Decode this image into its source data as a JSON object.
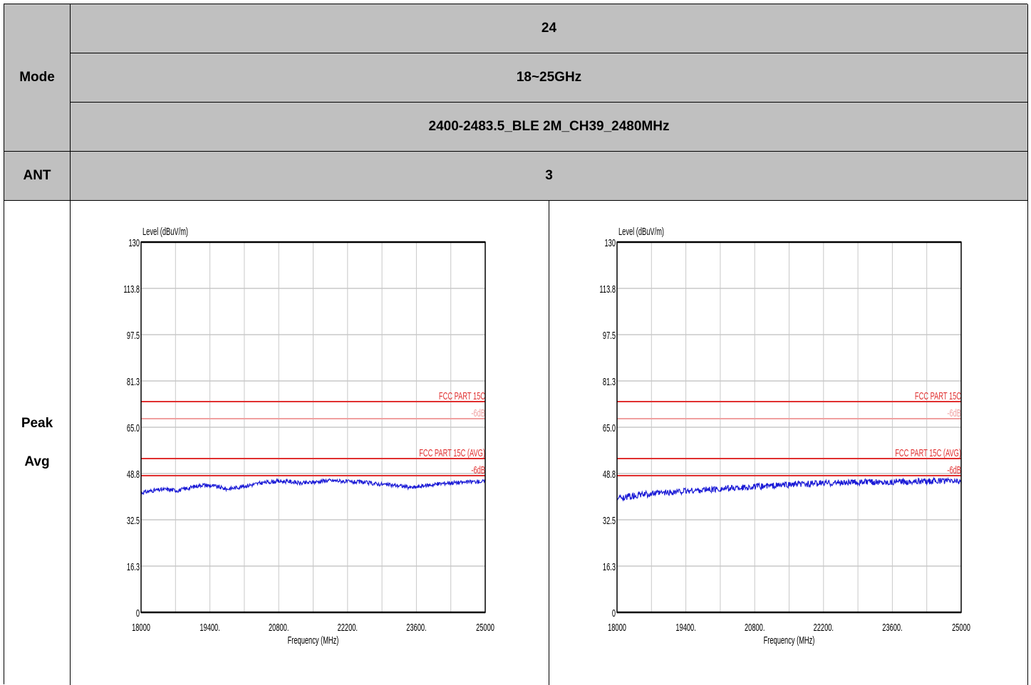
{
  "table": {
    "mode_label": "Mode",
    "mode_values": [
      "24",
      "18~25GHz",
      "2400-2483.5_BLE 2M_CH39_2480MHz"
    ],
    "ant_label": "ANT",
    "ant_value": "3",
    "result_labels": [
      "Peak",
      "Avg"
    ]
  },
  "chart_data": [
    {
      "type": "line",
      "title": "",
      "xlabel": "Frequency (MHz)",
      "ylabel": "Level (dBuV/m)",
      "xlim": [
        18000,
        25000
      ],
      "ylim": [
        0,
        130
      ],
      "x_ticks": [
        "18000",
        "19400.",
        "20800.",
        "22200.",
        "23600.",
        "25000"
      ],
      "y_ticks": [
        "0",
        "16.3",
        "32.5",
        "48.8",
        "65.0",
        "81.3",
        "97.5",
        "113.8",
        "130"
      ],
      "grid": true,
      "limit_lines": [
        {
          "label": "FCC PART 15C",
          "value": 74,
          "color": "#e03030"
        },
        {
          "label": "-6dB",
          "value": 68,
          "color": "#f0a0a0"
        },
        {
          "label": "FCC PART 15C (AVG)",
          "value": 54,
          "color": "#e03030"
        },
        {
          "label": "-6dB",
          "value": 48,
          "color": "#e03030"
        }
      ],
      "series": [
        {
          "color": "#1a1ad6",
          "x": [
            18000,
            18250,
            18500,
            18750,
            19000,
            19250,
            19500,
            19750,
            20000,
            20250,
            20500,
            20750,
            21000,
            21250,
            21500,
            21750,
            22000,
            22250,
            22500,
            22750,
            23000,
            23250,
            23500,
            23750,
            24000,
            24250,
            24500,
            24750,
            25000
          ],
          "y": [
            42.0,
            42.8,
            43.2,
            42.8,
            43.8,
            44.8,
            44.3,
            43.3,
            44.0,
            44.8,
            45.6,
            46.0,
            46.0,
            45.3,
            45.7,
            46.3,
            46.2,
            45.8,
            45.7,
            45.2,
            44.8,
            44.5,
            43.8,
            44.4,
            45.0,
            45.5,
            45.6,
            45.9,
            46.0
          ],
          "noise": 0.7
        }
      ]
    },
    {
      "type": "line",
      "title": "",
      "xlabel": "Frequency (MHz)",
      "ylabel": "Level (dBuV/m)",
      "xlim": [
        18000,
        25000
      ],
      "ylim": [
        0,
        130
      ],
      "x_ticks": [
        "18000",
        "19400.",
        "20800.",
        "22200.",
        "23600.",
        "25000"
      ],
      "y_ticks": [
        "0",
        "16.3",
        "32.5",
        "48.8",
        "65.0",
        "81.3",
        "97.5",
        "113.8",
        "130"
      ],
      "grid": true,
      "limit_lines": [
        {
          "label": "FCC PART 15C",
          "value": 74,
          "color": "#e03030"
        },
        {
          "label": "-6dB",
          "value": 68,
          "color": "#f0a0a0"
        },
        {
          "label": "FCC PART 15C (AVG)",
          "value": 54,
          "color": "#e03030"
        },
        {
          "label": "-6dB",
          "value": 48,
          "color": "#e03030"
        }
      ],
      "series": [
        {
          "color": "#1a1ad6",
          "x": [
            18000,
            18250,
            18500,
            18750,
            19000,
            19250,
            19500,
            19750,
            20000,
            20250,
            20500,
            20750,
            21000,
            21250,
            21500,
            21750,
            22000,
            22250,
            22500,
            22750,
            23000,
            23250,
            23500,
            23750,
            24000,
            24250,
            24500,
            24750,
            25000
          ],
          "y": [
            40.0,
            40.8,
            41.3,
            41.7,
            42.0,
            42.4,
            42.7,
            43.0,
            43.2,
            43.5,
            43.8,
            44.0,
            44.3,
            44.5,
            44.8,
            45.0,
            45.2,
            45.4,
            45.5,
            45.6,
            45.7,
            45.8,
            45.8,
            45.9,
            46.0,
            46.0,
            46.1,
            46.1,
            46.0
          ],
          "noise": 1.1
        }
      ]
    }
  ]
}
